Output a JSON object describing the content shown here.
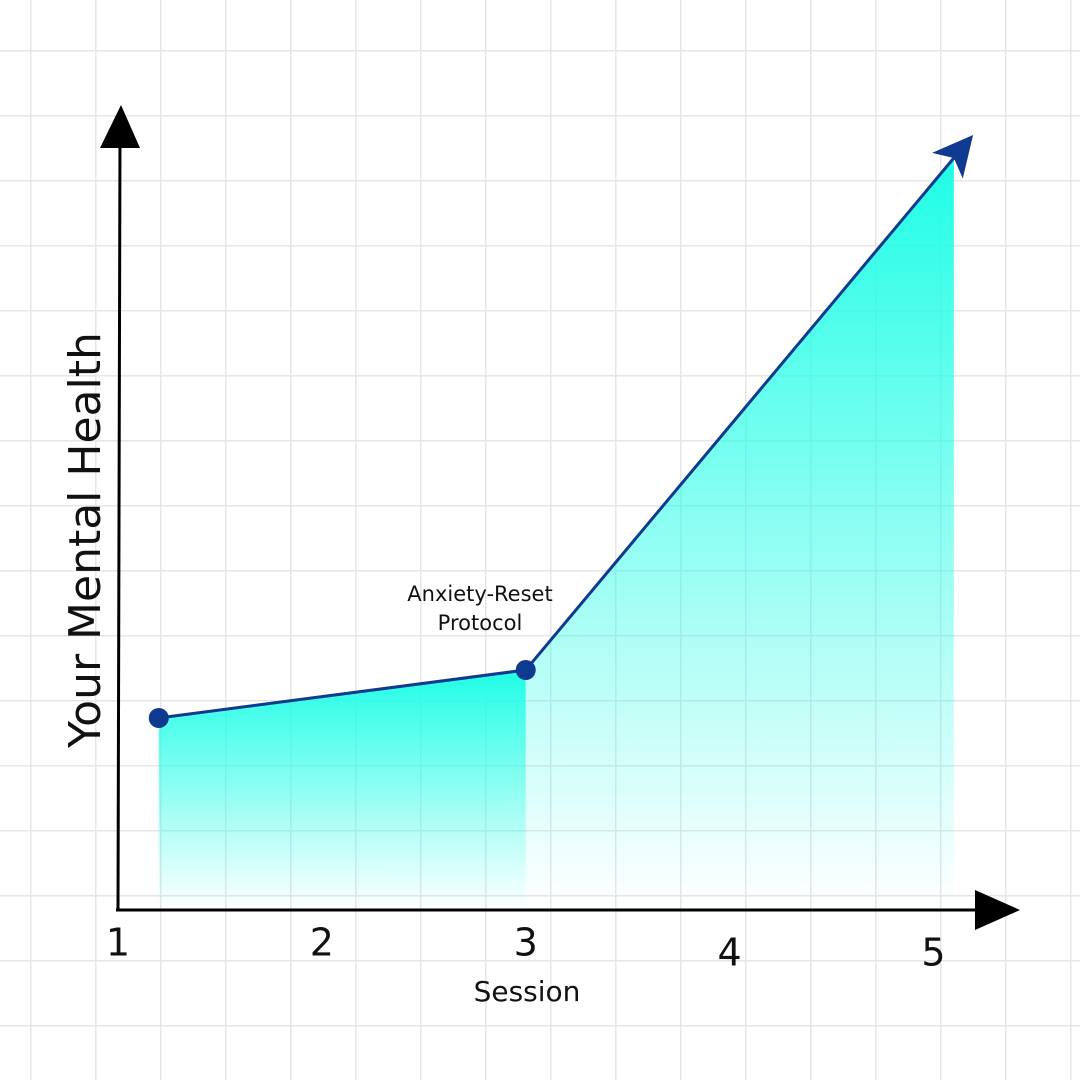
{
  "chart_data": {
    "type": "area",
    "y_label": "Your Mental Health",
    "x_label": "Session",
    "annotation": "Anxiety-Reset Protocol",
    "xticks": [
      1,
      2,
      3,
      4,
      5
    ],
    "xlim": [
      1,
      5.4
    ],
    "ylim": [
      0,
      100
    ],
    "x": [
      1.2,
      3,
      5.1
    ],
    "values": [
      24,
      30,
      94
    ],
    "color": "#0f3a8f",
    "fill_color": "#1ffde6"
  }
}
